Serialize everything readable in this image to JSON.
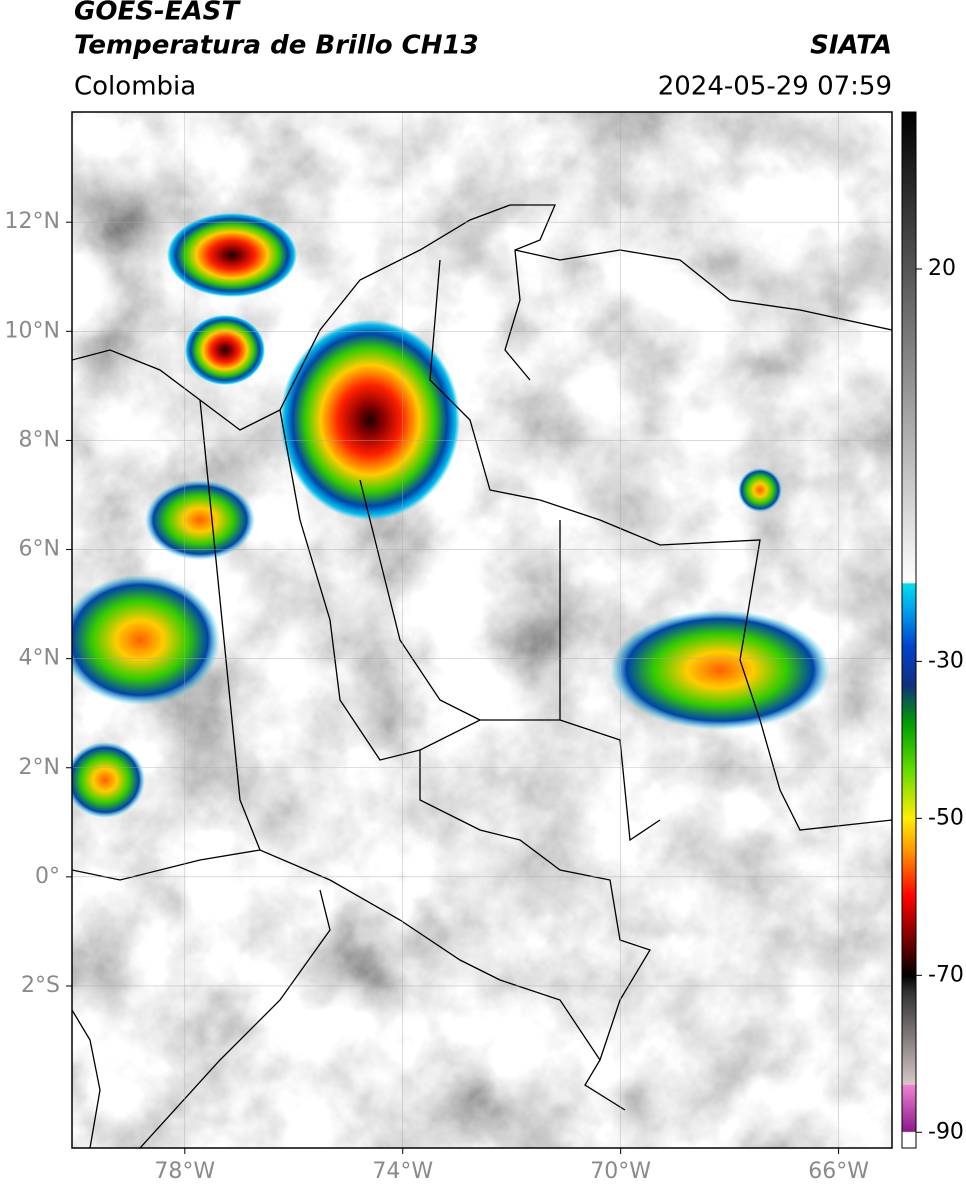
{
  "chart_data": {
    "type": "map",
    "title": "GOES-EAST",
    "subtitle": "Temperatura de Brillo CH13",
    "region": "Colombia",
    "source": "SIATA",
    "datetime": "2024-05-29 07:59",
    "xlim": [
      -80.07,
      -65.02
    ],
    "ylim": [
      -4.97,
      14.02
    ],
    "xticks": [
      {
        "value": -78,
        "label": "78°W"
      },
      {
        "value": -74,
        "label": "74°W"
      },
      {
        "value": -70,
        "label": "70°W"
      },
      {
        "value": -66,
        "label": "66°W"
      }
    ],
    "yticks": [
      {
        "value": 12,
        "label": "12°N"
      },
      {
        "value": 10,
        "label": "10°N"
      },
      {
        "value": 8,
        "label": "8°N"
      },
      {
        "value": 6,
        "label": "6°N"
      },
      {
        "value": 4,
        "label": "4°N"
      },
      {
        "value": 2,
        "label": "2°N"
      },
      {
        "value": 0,
        "label": "0°"
      },
      {
        "value": -2,
        "label": "2°S"
      }
    ],
    "grid": true,
    "colorbar": {
      "lim": [
        -92,
        40
      ],
      "ticks": [
        20,
        -30,
        -50,
        -70,
        -90
      ],
      "stops": [
        {
          "value": -92,
          "color": "#ffffff"
        },
        {
          "value": -90,
          "color": "#ffffff"
        },
        {
          "value": -89.9,
          "color": "#8b1a8b"
        },
        {
          "value": -84,
          "color": "#f080d0"
        },
        {
          "value": -83.9,
          "color": "#d8c8c8"
        },
        {
          "value": -72,
          "color": "#303030"
        },
        {
          "value": -70,
          "color": "#000000"
        },
        {
          "value": -66,
          "color": "#6a0000"
        },
        {
          "value": -60,
          "color": "#ff0000"
        },
        {
          "value": -54,
          "color": "#ff9900"
        },
        {
          "value": -50,
          "color": "#ffee00"
        },
        {
          "value": -44,
          "color": "#66dd00"
        },
        {
          "value": -38,
          "color": "#00a000"
        },
        {
          "value": -33,
          "color": "#103080"
        },
        {
          "value": -28,
          "color": "#0044cc"
        },
        {
          "value": -23,
          "color": "#00aaee"
        },
        {
          "value": -20.1,
          "color": "#00ddee"
        },
        {
          "value": -20,
          "color": "#ffffff"
        },
        {
          "value": 40,
          "color": "#000000"
        }
      ]
    }
  }
}
